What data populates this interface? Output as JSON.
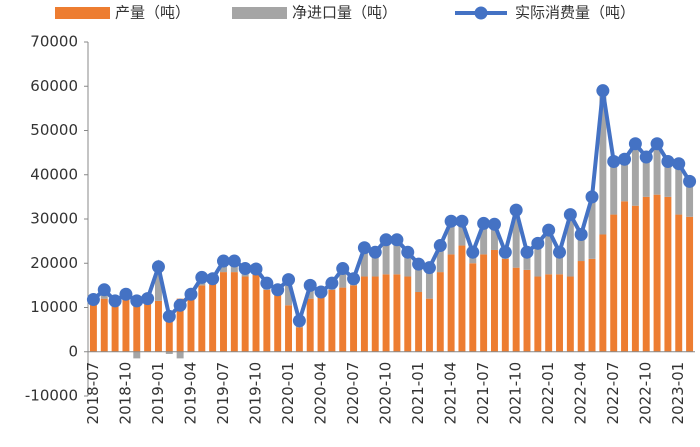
{
  "chart_data": {
    "type": "bar-line",
    "categories": [
      "2018-07",
      null,
      null,
      "2018-10",
      null,
      null,
      "2019-01",
      null,
      null,
      "2019-04",
      null,
      null,
      "2019-07",
      null,
      null,
      "2019-10",
      null,
      null,
      "2020-01",
      null,
      null,
      "2020-04",
      null,
      null,
      "2020-07",
      null,
      null,
      "2020-10",
      null,
      null,
      "2021-01",
      null,
      null,
      "2021-04",
      null,
      null,
      "2021-07",
      null,
      null,
      "2021-10",
      null,
      null,
      "2022-01",
      null,
      null,
      "2022-04",
      null,
      null,
      "2022-07",
      null,
      null,
      "2022-10",
      null,
      null,
      "2023-01",
      null
    ],
    "series": [
      {
        "name": "产量（吨）",
        "color": "#ed7d31",
        "kind": "bar",
        "values": [
          11000,
          12000,
          11000,
          12000,
          10500,
          11000,
          11500,
          8500,
          12000,
          13000,
          15000,
          15500,
          18000,
          18000,
          17000,
          17500,
          14000,
          13000,
          10500,
          5500,
          12000,
          12500,
          14000,
          14500,
          15000,
          17000,
          17000,
          17500,
          17500,
          17000,
          13500,
          12000,
          18000,
          22000,
          24000,
          20000,
          22000,
          23000,
          21000,
          19000,
          18500,
          17000,
          17500,
          17500,
          17000,
          20500,
          21000,
          26500,
          31000,
          34000,
          33000,
          35000,
          35500,
          35000,
          31000,
          30500
        ]
      },
      {
        "name": "净进口量（吨）",
        "color": "#a5a5a5",
        "kind": "bar",
        "values": [
          800,
          2000,
          500,
          1000,
          -1500,
          1000,
          7700,
          -500,
          -1500,
          0,
          1800,
          1000,
          2500,
          2500,
          1800,
          1200,
          1500,
          1000,
          5800,
          1500,
          3000,
          1000,
          1500,
          4300,
          1500,
          6500,
          5500,
          7800,
          7800,
          5500,
          6300,
          7000,
          6000,
          7500,
          5500,
          2500,
          7000,
          5800,
          1500,
          13000,
          4000,
          7500,
          10000,
          5000,
          14000,
          6000,
          14000,
          32500,
          12000,
          9500,
          14000,
          9000,
          11500,
          8000,
          11500,
          8000
        ]
      },
      {
        "name": "实际消费量（吨）",
        "color": "#4472c4",
        "kind": "line",
        "values": [
          11800,
          14000,
          11500,
          13000,
          11500,
          12000,
          19200,
          8000,
          10500,
          13000,
          16800,
          16500,
          20500,
          20500,
          18800,
          18700,
          15500,
          14000,
          16300,
          7000,
          15000,
          13500,
          15500,
          18800,
          16500,
          23500,
          22500,
          25300,
          25300,
          22500,
          19800,
          19000,
          24000,
          29500,
          29500,
          22500,
          29000,
          28800,
          22500,
          32000,
          22500,
          24500,
          27500,
          22500,
          31000,
          26500,
          35000,
          59000,
          43000,
          43500,
          47000,
          44000,
          47000,
          43000,
          42500,
          38500
        ]
      }
    ],
    "ylim": [
      -10000,
      70000
    ],
    "yticks": [
      -10000,
      0,
      10000,
      20000,
      30000,
      40000,
      50000,
      60000,
      70000
    ]
  }
}
